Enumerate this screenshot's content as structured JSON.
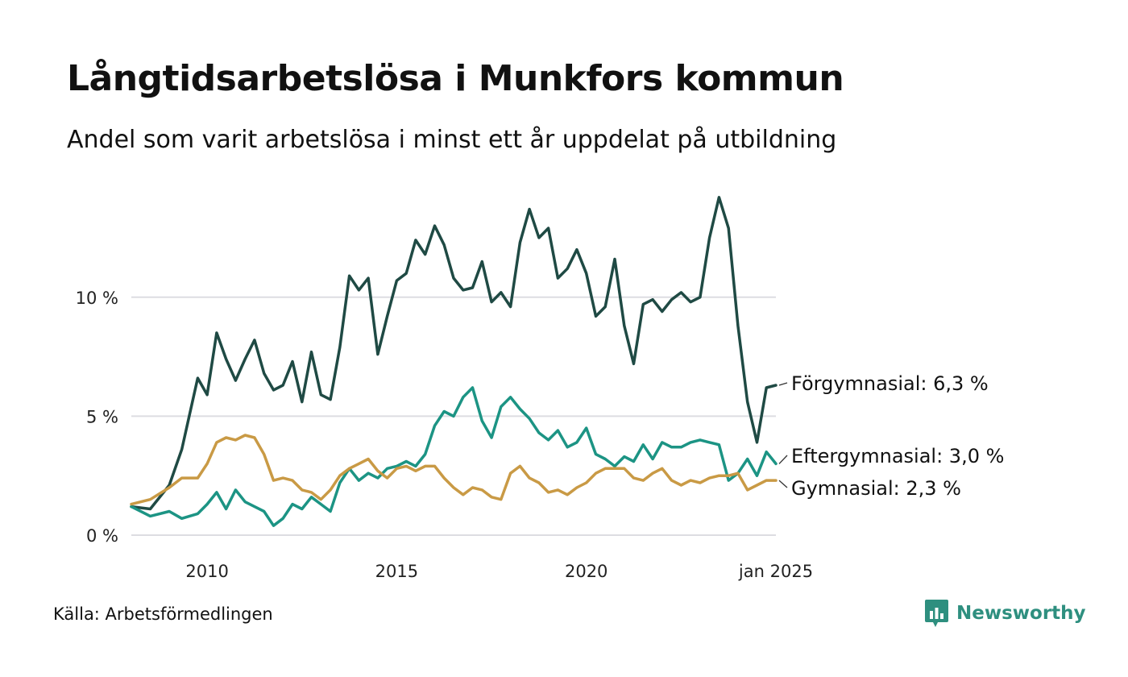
{
  "header": {
    "title": "Långtidsarbetslösa i Munkfors kommun",
    "subtitle": "Andel som varit arbetslösa i minst ett år uppdelat på utbildning"
  },
  "footer": {
    "source": "Källa: Arbetsförmedlingen",
    "brand": "Newsworthy",
    "brand_icon": "newsworthy-logo-icon"
  },
  "colors": {
    "forgymnasial": "#1f4a44",
    "eftergymnasial": "#1c9484",
    "gymnasial": "#c99a45",
    "grid": "#dddde2",
    "brand": "#2e8f7f"
  },
  "chart_data": {
    "type": "line",
    "x_unit": "year (decimal, monthly data)",
    "xlim": [
      2008.0,
      2025.0
    ],
    "ylim": [
      0,
      14.7
    ],
    "y_ticks": [
      0,
      5,
      10
    ],
    "y_tick_labels": [
      "0 %",
      "5 %",
      "10 %"
    ],
    "x_ticks": [
      2010,
      2015,
      2020,
      2025.0
    ],
    "x_tick_labels": [
      "2010",
      "2015",
      "2020",
      "jan 2025"
    ],
    "grid": "horizontal",
    "series": [
      {
        "name": "Förgymnasial",
        "label": "Förgymnasial: 6,3 %",
        "color": "#1f4a44",
        "x": [
          2008.0,
          2008.5,
          2009.0,
          2009.33,
          2009.75,
          2010.0,
          2010.25,
          2010.5,
          2010.75,
          2011.0,
          2011.25,
          2011.5,
          2011.75,
          2012.0,
          2012.25,
          2012.5,
          2012.75,
          2013.0,
          2013.25,
          2013.5,
          2013.75,
          2014.0,
          2014.25,
          2014.5,
          2014.75,
          2015.0,
          2015.25,
          2015.5,
          2015.75,
          2016.0,
          2016.25,
          2016.5,
          2016.75,
          2017.0,
          2017.25,
          2017.5,
          2017.75,
          2018.0,
          2018.25,
          2018.5,
          2018.75,
          2019.0,
          2019.25,
          2019.5,
          2019.75,
          2020.0,
          2020.25,
          2020.5,
          2020.75,
          2021.0,
          2021.25,
          2021.5,
          2021.75,
          2022.0,
          2022.25,
          2022.5,
          2022.75,
          2023.0,
          2023.25,
          2023.5,
          2023.75,
          2024.0,
          2024.25,
          2024.5,
          2024.75,
          2025.0
        ],
        "values": [
          1.2,
          1.1,
          2.1,
          3.6,
          6.6,
          5.9,
          8.5,
          7.4,
          6.5,
          7.4,
          8.2,
          6.8,
          6.1,
          6.3,
          7.3,
          5.6,
          7.7,
          5.9,
          5.7,
          7.9,
          10.9,
          10.3,
          10.8,
          7.6,
          9.2,
          10.7,
          11.0,
          12.4,
          11.8,
          13.0,
          12.2,
          10.8,
          10.3,
          10.4,
          11.5,
          9.8,
          10.2,
          9.6,
          12.3,
          13.7,
          12.5,
          12.9,
          10.8,
          11.2,
          12.0,
          11.0,
          9.2,
          9.6,
          11.6,
          8.8,
          7.2,
          9.7,
          9.9,
          9.4,
          9.9,
          10.2,
          9.8,
          10.0,
          12.5,
          14.2,
          12.9,
          8.8,
          5.6,
          3.9,
          6.2,
          6.3
        ]
      },
      {
        "name": "Eftergymnasial",
        "label": "Eftergymnasial: 3,0 %",
        "color": "#1c9484",
        "x": [
          2008.0,
          2008.5,
          2009.0,
          2009.33,
          2009.75,
          2010.0,
          2010.25,
          2010.5,
          2010.75,
          2011.0,
          2011.25,
          2011.5,
          2011.75,
          2012.0,
          2012.25,
          2012.5,
          2012.75,
          2013.0,
          2013.25,
          2013.5,
          2013.75,
          2014.0,
          2014.25,
          2014.5,
          2014.75,
          2015.0,
          2015.25,
          2015.5,
          2015.75,
          2016.0,
          2016.25,
          2016.5,
          2016.75,
          2017.0,
          2017.25,
          2017.5,
          2017.75,
          2018.0,
          2018.25,
          2018.5,
          2018.75,
          2019.0,
          2019.25,
          2019.5,
          2019.75,
          2020.0,
          2020.25,
          2020.5,
          2020.75,
          2021.0,
          2021.25,
          2021.5,
          2021.75,
          2022.0,
          2022.25,
          2022.5,
          2022.75,
          2023.0,
          2023.25,
          2023.5,
          2023.75,
          2024.0,
          2024.25,
          2024.5,
          2024.75,
          2025.0
        ],
        "values": [
          1.2,
          0.8,
          1.0,
          0.7,
          0.9,
          1.3,
          1.8,
          1.1,
          1.9,
          1.4,
          1.2,
          1.0,
          0.4,
          0.7,
          1.3,
          1.1,
          1.6,
          1.3,
          1.0,
          2.2,
          2.8,
          2.3,
          2.6,
          2.4,
          2.8,
          2.9,
          3.1,
          2.9,
          3.4,
          4.6,
          5.2,
          5.0,
          5.8,
          6.2,
          4.8,
          4.1,
          5.4,
          5.8,
          5.3,
          4.9,
          4.3,
          4.0,
          4.4,
          3.7,
          3.9,
          4.5,
          3.4,
          3.2,
          2.9,
          3.3,
          3.1,
          3.8,
          3.2,
          3.9,
          3.7,
          3.7,
          3.9,
          4.0,
          3.9,
          3.8,
          2.3,
          2.6,
          3.2,
          2.5,
          3.5,
          3.0
        ]
      },
      {
        "name": "Gymnasial",
        "label": "Gymnasial: 2,3 %",
        "color": "#c99a45",
        "x": [
          2008.0,
          2008.5,
          2009.0,
          2009.33,
          2009.75,
          2010.0,
          2010.25,
          2010.5,
          2010.75,
          2011.0,
          2011.25,
          2011.5,
          2011.75,
          2012.0,
          2012.25,
          2012.5,
          2012.75,
          2013.0,
          2013.25,
          2013.5,
          2013.75,
          2014.0,
          2014.25,
          2014.5,
          2014.75,
          2015.0,
          2015.25,
          2015.5,
          2015.75,
          2016.0,
          2016.25,
          2016.5,
          2016.75,
          2017.0,
          2017.25,
          2017.5,
          2017.75,
          2018.0,
          2018.25,
          2018.5,
          2018.75,
          2019.0,
          2019.25,
          2019.5,
          2019.75,
          2020.0,
          2020.25,
          2020.5,
          2020.75,
          2021.0,
          2021.25,
          2021.5,
          2021.75,
          2022.0,
          2022.25,
          2022.5,
          2022.75,
          2023.0,
          2023.25,
          2023.5,
          2023.75,
          2024.0,
          2024.25,
          2024.5,
          2024.75,
          2025.0
        ],
        "values": [
          1.3,
          1.5,
          2.0,
          2.4,
          2.4,
          3.0,
          3.9,
          4.1,
          4.0,
          4.2,
          4.1,
          3.4,
          2.3,
          2.4,
          2.3,
          1.9,
          1.8,
          1.5,
          1.9,
          2.5,
          2.8,
          3.0,
          3.2,
          2.7,
          2.4,
          2.8,
          2.9,
          2.7,
          2.9,
          2.9,
          2.4,
          2.0,
          1.7,
          2.0,
          1.9,
          1.6,
          1.5,
          2.6,
          2.9,
          2.4,
          2.2,
          1.8,
          1.9,
          1.7,
          2.0,
          2.2,
          2.6,
          2.8,
          2.8,
          2.8,
          2.4,
          2.3,
          2.6,
          2.8,
          2.3,
          2.1,
          2.3,
          2.2,
          2.4,
          2.5,
          2.5,
          2.6,
          1.9,
          2.1,
          2.3,
          2.3
        ]
      }
    ]
  }
}
